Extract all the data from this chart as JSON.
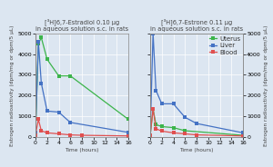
{
  "title_left": "[³H]6,7-Estradiol 0.10 µg\nin aqueous solution s.c. in rats",
  "title_right": "[³H]6,7-Estrone 0.11 µg\nin aqueous solution s.c. in rats",
  "ylabel_left": "Estrogen radioactivity (dpm/mg or dpm/5 µL)",
  "ylabel_right": "Estrogen radioactivity (dpm/mg or dpm/5 µL)",
  "xlabel": "Time (hours)",
  "ylim": [
    0,
    5000
  ],
  "yticks": [
    0,
    1000,
    2000,
    3000,
    4000,
    5000
  ],
  "xticks": [
    0,
    2,
    4,
    6,
    8,
    10,
    12,
    14,
    16
  ],
  "legend_labels": [
    "Uterus",
    "Liver",
    "Blood"
  ],
  "background_color": "#dce6f1",
  "estradiol": {
    "time": [
      0,
      0.5,
      1,
      2,
      4,
      6,
      8,
      16
    ],
    "uterus": [
      200,
      4500,
      4800,
      3750,
      2950,
      2950,
      null,
      850
    ],
    "liver": [
      200,
      4600,
      2600,
      1250,
      1200,
      700,
      null,
      220
    ],
    "blood": [
      100,
      850,
      300,
      200,
      150,
      100,
      80,
      50
    ]
  },
  "estrone": {
    "time": [
      0,
      0.5,
      1,
      2,
      4,
      6,
      8,
      16
    ],
    "uterus": [
      50,
      1350,
      600,
      500,
      450,
      300,
      null,
      80
    ],
    "liver": [
      100,
      5000,
      2250,
      1600,
      1600,
      950,
      650,
      200
    ],
    "blood": [
      80,
      1350,
      400,
      280,
      200,
      150,
      100,
      50
    ]
  },
  "uterus_color": "#3cb44b",
  "liver_color": "#4472c4",
  "blood_color": "#e05050",
  "line_width": 0.9,
  "marker_size": 2.5,
  "title_fontsize": 4.8,
  "label_fontsize": 4.2,
  "tick_fontsize": 4.5,
  "legend_fontsize": 5.0
}
